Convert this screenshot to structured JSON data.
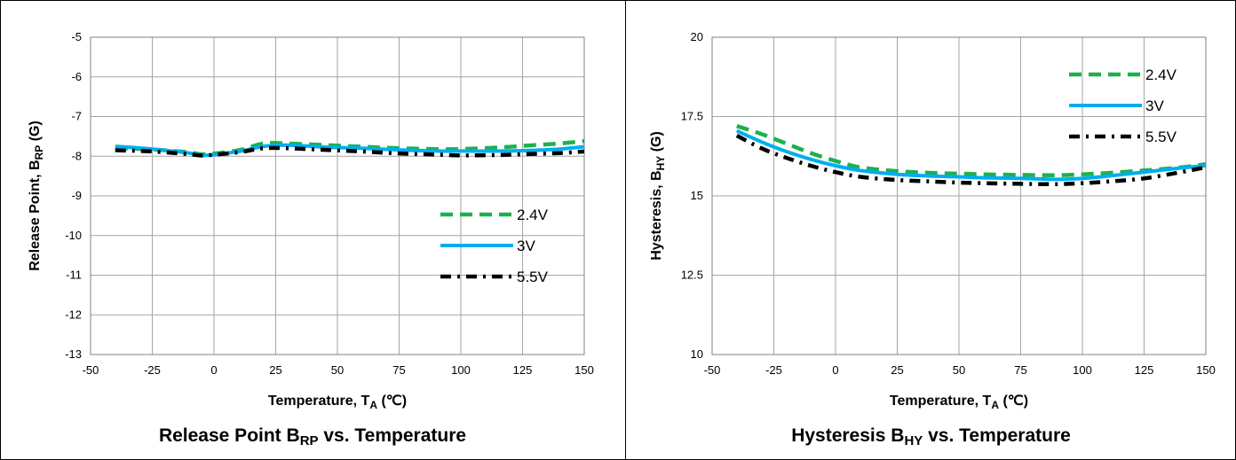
{
  "charts": [
    {
      "id": "release",
      "caption": {
        "main": "Release Point B",
        "sub": "RP",
        "suffix": " vs. Temperature"
      },
      "xlabel": {
        "main": "Temperature, T",
        "sub": "A",
        "suffix": " (℃)"
      },
      "ylabel": {
        "main": "Release Point, B",
        "sub": "RP",
        "suffix": " (G)"
      }
    },
    {
      "id": "hysteresis",
      "caption": {
        "main": "Hysteresis B",
        "sub": "HY",
        "suffix": " vs. Temperature"
      },
      "xlabel": {
        "main": "Temperature, T",
        "sub": "A",
        "suffix": " (℃)"
      },
      "ylabel": {
        "main": "Hysteresis, B",
        "sub": "HY",
        "suffix": " (G)"
      }
    }
  ],
  "series_styles": [
    {
      "name": "2.4V",
      "color": "#1DB14B",
      "style": "dashed"
    },
    {
      "name": "3V",
      "color": "#00AEEF",
      "style": "solid"
    },
    {
      "name": "5.5V",
      "color": "#000000",
      "style": "dashdot"
    }
  ],
  "chart_data": [
    {
      "type": "line",
      "xlim": [
        -50,
        150
      ],
      "ylim": [
        -13,
        -5
      ],
      "xticks": [
        -50,
        -25,
        0,
        25,
        50,
        75,
        100,
        125,
        150
      ],
      "yticks": [
        -5,
        -6,
        -7,
        -8,
        -9,
        -10,
        -11,
        -12,
        -13
      ],
      "grid": true,
      "legend_position": "bottom-right",
      "x": [
        -40,
        -25,
        -10,
        -4,
        10,
        20,
        30,
        45,
        60,
        75,
        90,
        100,
        115,
        125,
        140,
        150
      ],
      "series": [
        {
          "name": "2.4V",
          "values": [
            -7.8,
            -7.83,
            -7.9,
            -7.95,
            -7.85,
            -7.68,
            -7.68,
            -7.72,
            -7.76,
            -7.8,
            -7.82,
            -7.82,
            -7.78,
            -7.74,
            -7.68,
            -7.62
          ]
        },
        {
          "name": "3V",
          "values": [
            -7.75,
            -7.82,
            -7.92,
            -7.98,
            -7.88,
            -7.75,
            -7.72,
            -7.77,
            -7.8,
            -7.84,
            -7.87,
            -7.87,
            -7.87,
            -7.86,
            -7.82,
            -7.76
          ]
        },
        {
          "name": "5.5V",
          "values": [
            -7.85,
            -7.88,
            -7.95,
            -7.98,
            -7.9,
            -7.8,
            -7.8,
            -7.84,
            -7.88,
            -7.93,
            -7.96,
            -7.98,
            -7.97,
            -7.95,
            -7.92,
            -7.88
          ]
        }
      ]
    },
    {
      "type": "line",
      "xlim": [
        -50,
        150
      ],
      "ylim": [
        10,
        20
      ],
      "xticks": [
        -50,
        -25,
        0,
        25,
        50,
        75,
        100,
        125,
        150
      ],
      "yticks": [
        "20",
        "17.5",
        "15",
        "12.5",
        "10"
      ],
      "grid": true,
      "legend_position": "top-right",
      "x": [
        -40,
        -30,
        -20,
        -10,
        0,
        10,
        25,
        40,
        50,
        60,
        75,
        90,
        100,
        110,
        125,
        140,
        150
      ],
      "series": [
        {
          "name": "2.4V",
          "values": [
            17.2,
            16.95,
            16.65,
            16.35,
            16.1,
            15.9,
            15.78,
            15.72,
            15.7,
            15.68,
            15.66,
            15.65,
            15.68,
            15.72,
            15.8,
            15.9,
            16.0
          ]
        },
        {
          "name": "3V",
          "values": [
            17.05,
            16.7,
            16.4,
            16.15,
            15.95,
            15.8,
            15.68,
            15.62,
            15.6,
            15.57,
            15.55,
            15.52,
            15.55,
            15.62,
            15.75,
            15.88,
            15.95
          ]
        },
        {
          "name": "5.5V",
          "values": [
            16.9,
            16.5,
            16.2,
            15.95,
            15.75,
            15.6,
            15.5,
            15.45,
            15.42,
            15.4,
            15.38,
            15.37,
            15.4,
            15.45,
            15.55,
            15.75,
            15.9
          ]
        }
      ]
    }
  ]
}
